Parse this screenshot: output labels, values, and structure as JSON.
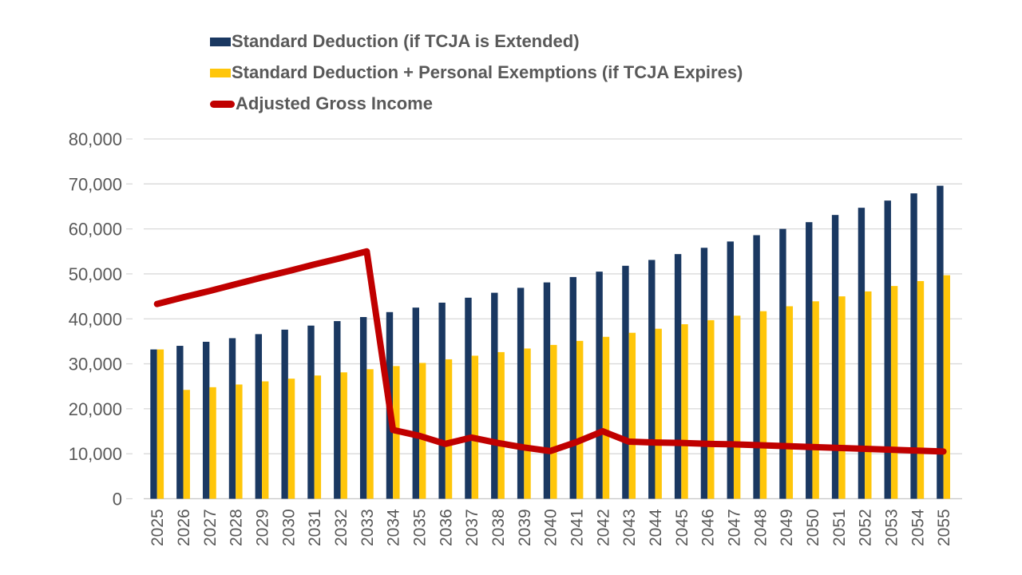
{
  "colors": {
    "bar_extended": "#1A3861",
    "bar_expires": "#FFC60A",
    "agi_line": "#C00000",
    "gridline": "#D9D9D9",
    "axis_line": "#C9C9C9",
    "text": "#595959",
    "background": "#FFFFFF"
  },
  "chart_data": {
    "type": "bar+line combo",
    "title": "",
    "xlabel": "",
    "ylabel": "",
    "grid": true,
    "legend_position": "top-left",
    "ylim": [
      0,
      80000
    ],
    "y_ticks": [
      0,
      10000,
      20000,
      30000,
      40000,
      50000,
      60000,
      70000,
      80000
    ],
    "y_tick_labels": [
      "0",
      "10,000",
      "20,000",
      "30,000",
      "40,000",
      "50,000",
      "60,000",
      "70,000",
      "80,000"
    ],
    "x_tick_rotation_deg": -90,
    "categories": [
      "2025",
      "2026",
      "2027",
      "2028",
      "2029",
      "2030",
      "2031",
      "2032",
      "2033",
      "2034",
      "2035",
      "2036",
      "2037",
      "2038",
      "2039",
      "2040",
      "2041",
      "2042",
      "2043",
      "2044",
      "2045",
      "2046",
      "2047",
      "2048",
      "2049",
      "2050",
      "2051",
      "2052",
      "2053",
      "2054",
      "2055"
    ],
    "series": [
      {
        "name": "Standard Deduction (if TCJA is Extended)",
        "type": "bar",
        "color": "#1A3861",
        "values": [
          33200,
          34000,
          34900,
          35700,
          36600,
          37600,
          38500,
          39500,
          40400,
          41500,
          42500,
          43600,
          44700,
          45800,
          46900,
          48100,
          49300,
          50500,
          51800,
          53100,
          54400,
          55800,
          57200,
          58600,
          60000,
          61500,
          63100,
          64700,
          66300,
          67900,
          69600
        ]
      },
      {
        "name": "Standard Deduction + Personal Exemptions (if TCJA Expires)",
        "type": "bar",
        "color": "#FFC60A",
        "values": [
          33200,
          24200,
          24800,
          25400,
          26100,
          26700,
          27400,
          28100,
          28800,
          29500,
          30200,
          31000,
          31800,
          32600,
          33400,
          34200,
          35100,
          36000,
          36900,
          37800,
          38800,
          39700,
          40700,
          41700,
          42800,
          43900,
          45000,
          46100,
          47300,
          48400,
          49700
        ]
      },
      {
        "name": "Adjusted Gross Income",
        "type": "line",
        "color": "#C00000",
        "values": [
          43300,
          44800,
          46200,
          47700,
          49200,
          50600,
          52100,
          53500,
          55000,
          15300,
          14000,
          12200,
          13600,
          12400,
          11400,
          10600,
          12600,
          15000,
          12700,
          12500,
          12400,
          12200,
          12100,
          11900,
          11700,
          11500,
          11300,
          11100,
          10900,
          10700,
          10500
        ]
      }
    ]
  }
}
